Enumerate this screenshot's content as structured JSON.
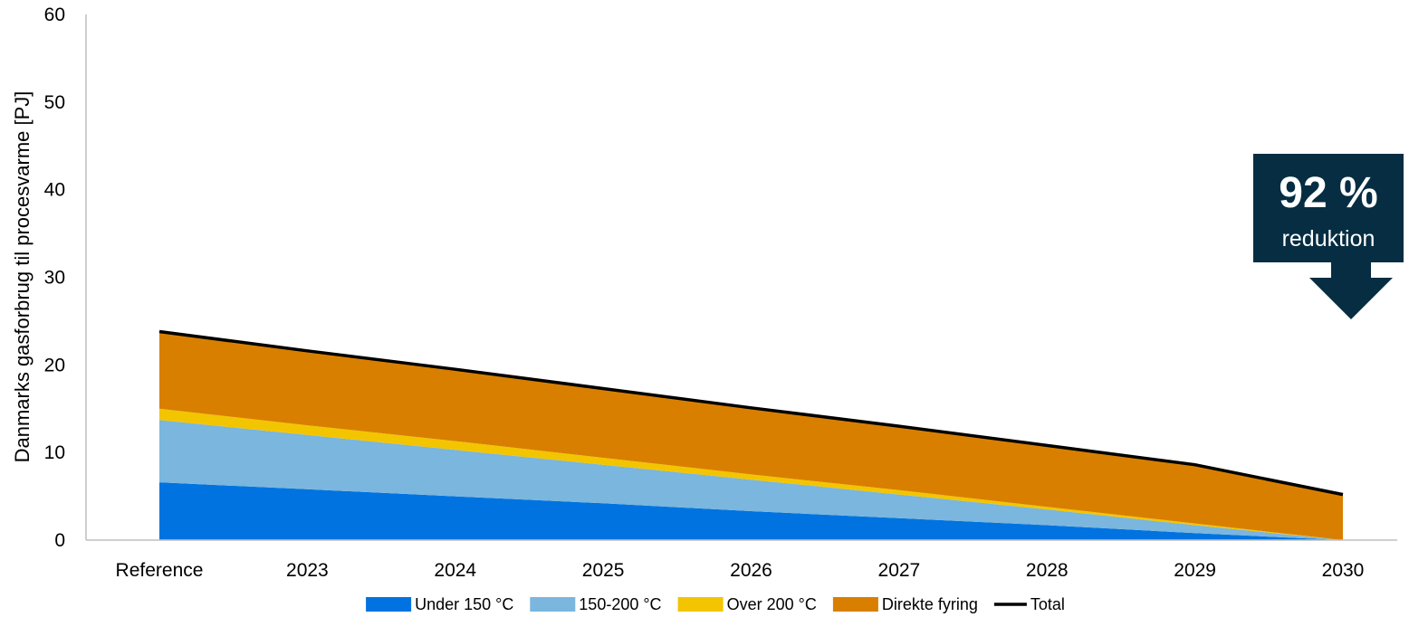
{
  "chart_data": {
    "type": "area",
    "ylabel": "Danmarks gasforbrug til procesvarme [PJ]",
    "xlabel": "",
    "ylim": [
      0,
      60
    ],
    "yticks": [
      0,
      10,
      20,
      30,
      40,
      50,
      60
    ],
    "categories": [
      "Reference",
      "2023",
      "2024",
      "2025",
      "2026",
      "2027",
      "2028",
      "2029",
      "2030"
    ],
    "stacked": true,
    "series": [
      {
        "name": "Under 150 °C",
        "type": "area",
        "color": "#0073E0",
        "values": [
          6.6,
          5.8,
          5.0,
          4.2,
          3.3,
          2.5,
          1.7,
          0.8,
          0.0
        ]
      },
      {
        "name": "150-200 °C",
        "type": "area",
        "color": "#7AB6DD",
        "values": [
          7.1,
          6.2,
          5.3,
          4.4,
          3.6,
          2.7,
          1.8,
          0.9,
          0.0
        ]
      },
      {
        "name": "Over 200 °C",
        "type": "area",
        "color": "#F2C500",
        "values": [
          1.3,
          1.1,
          1.0,
          0.8,
          0.6,
          0.5,
          0.3,
          0.2,
          0.0
        ]
      },
      {
        "name": "Direkte fyring",
        "type": "area",
        "color": "#D97F00",
        "values": [
          8.8,
          8.5,
          8.2,
          7.9,
          7.6,
          7.3,
          7.0,
          6.7,
          5.2
        ]
      },
      {
        "name": "Total",
        "type": "line",
        "color": "#000000",
        "values": [
          23.8,
          21.6,
          19.5,
          17.3,
          15.1,
          13.0,
          10.8,
          8.6,
          5.2
        ]
      }
    ],
    "legend_position": "bottom",
    "grid": false,
    "annotation": {
      "big": "92 %",
      "small": "reduktion",
      "color": "#062D42"
    }
  }
}
